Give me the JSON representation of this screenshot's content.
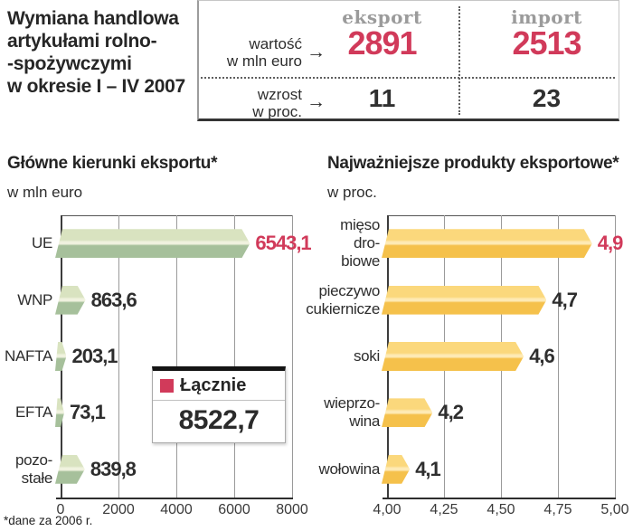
{
  "header": {
    "title_lines": [
      "Wymiana handlowa",
      "artykułami rolno-",
      "-spożywczymi",
      "w okresie I – IV 2007"
    ],
    "table": {
      "row1_label": "wartość\nw mln euro",
      "row2_label": "wzrost\nw proc.",
      "arrow_icon": "→",
      "columns": [
        {
          "name": "eksport",
          "value": "2891",
          "growth": "11"
        },
        {
          "name": "import",
          "value": "2513",
          "growth": "23"
        }
      ]
    }
  },
  "chart_data": [
    {
      "type": "bar",
      "title": "Główne kierunki eksportu*",
      "unit_label": "w mln euro",
      "xlim": [
        0,
        8000
      ],
      "tick_labels": [
        "0",
        "2000",
        "4000",
        "6000",
        "8000"
      ],
      "grid": true,
      "bar_colors": {
        "top": "#d9e3c0",
        "highlight": "#f0f2df",
        "bottom": "#a6c09b"
      },
      "rows": [
        {
          "label": "UE",
          "label_lines": [
            "UE"
          ],
          "value": 6543.1,
          "value_label": "6543,1",
          "highlight": true
        },
        {
          "label": "WNP",
          "label_lines": [
            "WNP"
          ],
          "value": 863.6,
          "value_label": "863,6",
          "highlight": false
        },
        {
          "label": "NAFTA",
          "label_lines": [
            "NAFTA"
          ],
          "value": 203.1,
          "value_label": "203,1",
          "highlight": false
        },
        {
          "label": "EFTA",
          "label_lines": [
            "EFTA"
          ],
          "value": 73.1,
          "value_label": "73,1",
          "highlight": false
        },
        {
          "label": "pozostałe",
          "label_lines": [
            "pozo-",
            "stałe"
          ],
          "value": 839.8,
          "value_label": "839,8",
          "highlight": false
        }
      ],
      "legend": {
        "label": "Łącznie",
        "value": "8522,7"
      }
    },
    {
      "type": "bar",
      "title": "Najważniejsze produkty eksportowe*",
      "unit_label": "w proc.",
      "xlim": [
        4,
        5
      ],
      "tick_labels": [
        "4,00",
        "4,25",
        "4,50",
        "4,75",
        "5,00"
      ],
      "grid": true,
      "bar_colors": {
        "top": "#fbd87c",
        "highlight": "#feeab5",
        "bottom": "#f5c14b"
      },
      "rows": [
        {
          "label": "mięso drobiowe",
          "label_lines": [
            "mięso",
            "dro-",
            "biowe"
          ],
          "value": 4.9,
          "value_label": "4,9",
          "highlight": true
        },
        {
          "label": "pieczywo cukiernicze",
          "label_lines": [
            "pieczywo",
            "cukiernicze"
          ],
          "value": 4.7,
          "value_label": "4,7",
          "highlight": false
        },
        {
          "label": "soki",
          "label_lines": [
            "soki"
          ],
          "value": 4.6,
          "value_label": "4,6",
          "highlight": false
        },
        {
          "label": "wieprzowina",
          "label_lines": [
            "wieprzo-",
            "wina"
          ],
          "value": 4.2,
          "value_label": "4,2",
          "highlight": false
        },
        {
          "label": "wołowina",
          "label_lines": [
            "wołowina"
          ],
          "value": 4.1,
          "value_label": "4,1",
          "highlight": false
        }
      ]
    }
  ],
  "footnote": "*dane za 2006 r.",
  "colors": {
    "accent_red": "#d13a5a",
    "header_gray": "#9b9b9b",
    "text_dark": "#2b2b2b",
    "grid_gray": "#9a9a9a"
  }
}
